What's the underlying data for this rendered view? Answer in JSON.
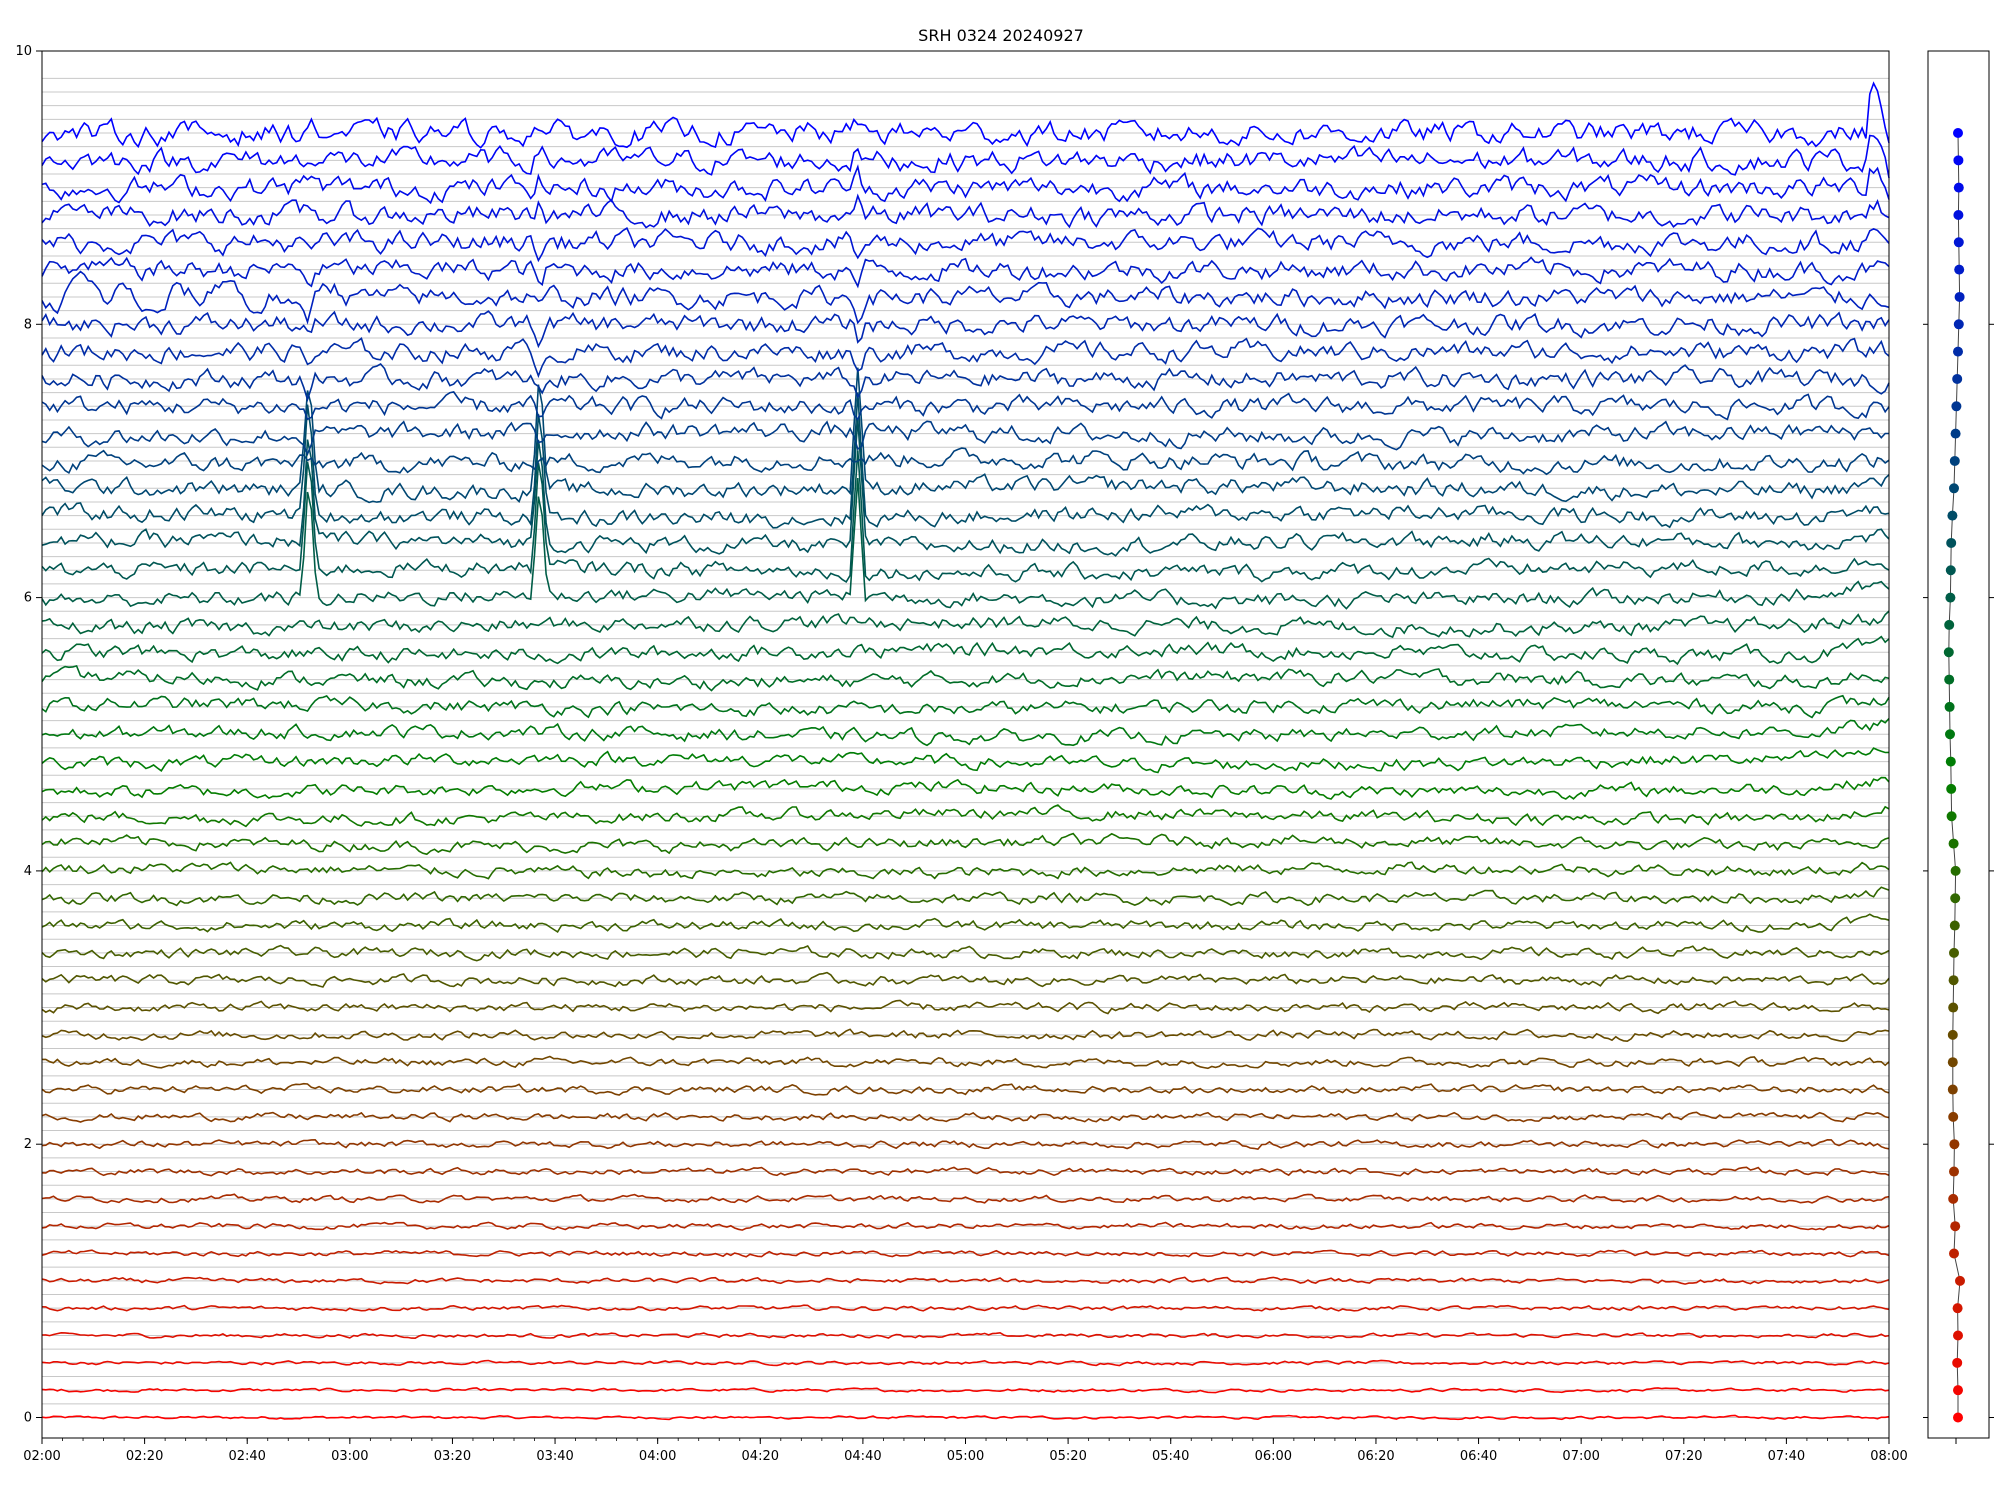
{
  "chart_data": {
    "type": "line",
    "title": "SRH 0324 20240927",
    "xlabel": "",
    "ylabel": "",
    "x_range": [
      "02:00",
      "08:00"
    ],
    "ylim": [
      -0.15,
      10
    ],
    "grid": true,
    "x_ticks": [
      "02:00",
      "02:20",
      "02:40",
      "03:00",
      "03:20",
      "03:40",
      "04:00",
      "04:20",
      "04:40",
      "05:00",
      "05:20",
      "05:40",
      "06:00",
      "06:20",
      "06:40",
      "07:00",
      "07:20",
      "07:40",
      "08:00"
    ],
    "y_ticks": [
      "0",
      "2",
      "4",
      "6",
      "8",
      "10"
    ],
    "trace_count": 48,
    "trace_spacing": 0.2,
    "trace_baselines": [
      0,
      0.2,
      0.4,
      0.6,
      0.8,
      1.0,
      1.2,
      1.4,
      1.6,
      1.8,
      2.0,
      2.2,
      2.4,
      2.6,
      2.8,
      3.0,
      3.2,
      3.4,
      3.6,
      3.8,
      4.0,
      4.2,
      4.4,
      4.6,
      4.8,
      5.0,
      5.2,
      5.4,
      5.6,
      5.8,
      6.0,
      6.2,
      6.4,
      6.6,
      6.8,
      7.0,
      7.2,
      7.4,
      7.6,
      7.8,
      8.0,
      8.2,
      8.4,
      8.6,
      8.8,
      9.0,
      9.2,
      9.4
    ],
    "color_start": "#ff0000",
    "color_mid": "#008000",
    "color_end": "#0000ff",
    "burst_times": [
      "02:52",
      "03:37",
      "04:39"
    ],
    "side_panel": {
      "type": "scatter-line",
      "markers": 48,
      "points_y": [
        0,
        0.2,
        0.4,
        0.6,
        0.8,
        1.0,
        1.2,
        1.4,
        1.6,
        1.8,
        2.0,
        2.2,
        2.4,
        2.6,
        2.8,
        3.0,
        3.2,
        3.4,
        3.6,
        3.8,
        4.0,
        4.2,
        4.4,
        4.6,
        4.8,
        5.0,
        5.2,
        5.4,
        5.6,
        5.8,
        6.0,
        6.2,
        6.4,
        6.6,
        6.8,
        7.0,
        7.2,
        7.4,
        7.6,
        7.8,
        8.0,
        8.2,
        8.4,
        8.6,
        8.8,
        9.0,
        9.2,
        9.4
      ],
      "points_x": [
        0.5,
        0.5,
        0.48,
        0.5,
        0.49,
        0.55,
        0.4,
        0.43,
        0.38,
        0.4,
        0.41,
        0.38,
        0.37,
        0.37,
        0.37,
        0.38,
        0.39,
        0.4,
        0.42,
        0.43,
        0.44,
        0.39,
        0.34,
        0.33,
        0.32,
        0.3,
        0.29,
        0.28,
        0.27,
        0.28,
        0.31,
        0.32,
        0.33,
        0.36,
        0.4,
        0.42,
        0.44,
        0.46,
        0.48,
        0.5,
        0.52,
        0.54,
        0.53,
        0.52,
        0.51,
        0.52,
        0.51,
        0.5
      ]
    }
  }
}
